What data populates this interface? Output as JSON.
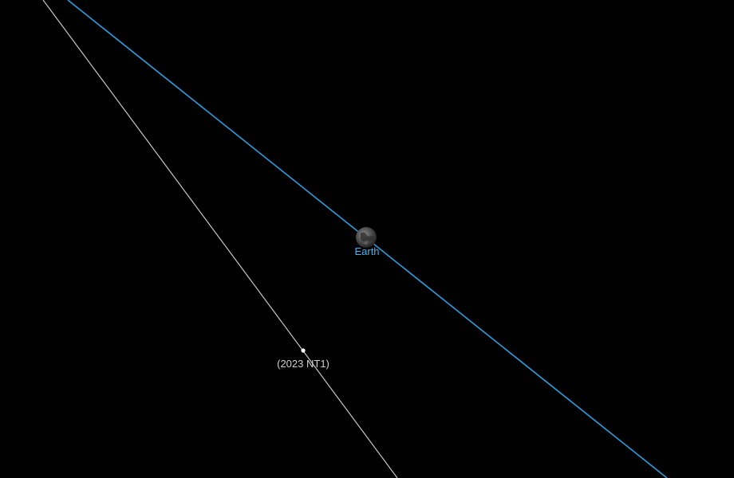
{
  "bodies": {
    "earth": {
      "label": "Earth",
      "label_color": "#3fb4ec",
      "orbit_color": "#2a9fe0"
    },
    "asteroid": {
      "label": "(2023 NT1)",
      "label_color": "#d0d0d0",
      "orbit_color": "#c8c8c0",
      "marker_color": "#ffffff"
    }
  },
  "background_color": "#000000"
}
